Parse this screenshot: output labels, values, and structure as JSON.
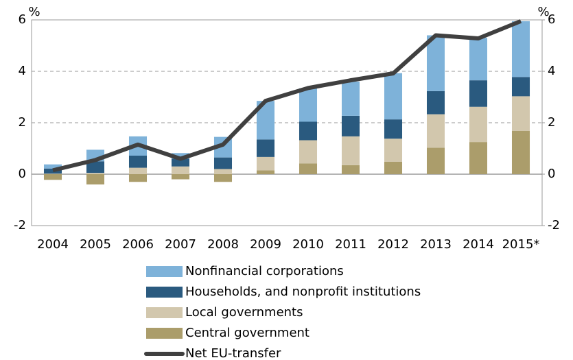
{
  "chart_data": {
    "type": "bar_line",
    "y_label": "%",
    "y2_label": "%",
    "categories": [
      "2004",
      "2005",
      "2006",
      "2007",
      "2008",
      "2009",
      "2010",
      "2011",
      "2012",
      "2013",
      "2014",
      "2015*"
    ],
    "series": [
      {
        "name": "Central government",
        "color": "#ab9d6b",
        "type": "bar",
        "values": [
          -0.22,
          -0.4,
          -0.3,
          -0.2,
          -0.3,
          0.15,
          0.42,
          0.35,
          0.48,
          1.03,
          1.25,
          1.68
        ]
      },
      {
        "name": "Local governments",
        "color": "#d2c7ad",
        "type": "bar",
        "values": [
          0.02,
          0.05,
          0.25,
          0.3,
          0.2,
          0.52,
          0.9,
          1.12,
          0.9,
          1.3,
          1.37,
          1.35
        ]
      },
      {
        "name": "Households, and nonprofit institutions",
        "color": "#2a5a7f",
        "type": "bar",
        "values": [
          0.2,
          0.45,
          0.47,
          0.3,
          0.45,
          0.68,
          0.72,
          0.8,
          0.75,
          0.9,
          1.03,
          0.75
        ]
      },
      {
        "name": "Nonfinancial corporations",
        "color": "#7eb2d9",
        "type": "bar",
        "values": [
          0.16,
          0.45,
          0.75,
          0.22,
          0.8,
          1.5,
          1.3,
          1.33,
          1.8,
          2.17,
          1.65,
          2.17
        ]
      },
      {
        "name": "Net EU-transfer",
        "color": "#404040",
        "type": "line",
        "values": [
          0.15,
          0.55,
          1.15,
          0.6,
          1.15,
          2.85,
          3.35,
          3.65,
          3.92,
          5.4,
          5.28,
          5.95
        ]
      }
    ],
    "ylim": [
      -2,
      6
    ],
    "yticks": [
      -2,
      0,
      2,
      4,
      6
    ],
    "y2lim": [
      -2,
      6
    ],
    "y2ticks": [
      -2,
      0,
      2,
      4,
      6
    ],
    "grid": true,
    "legend": "bottom"
  }
}
